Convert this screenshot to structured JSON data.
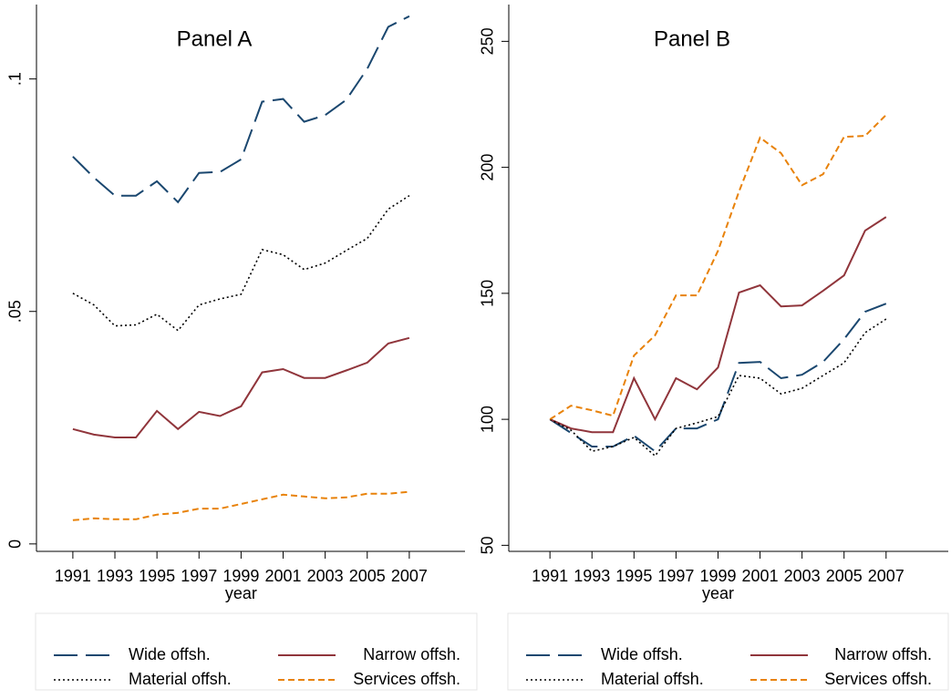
{
  "chart_data": [
    {
      "type": "line",
      "title": "Panel A",
      "x_label": "year",
      "x": [
        1991,
        1992,
        1993,
        1994,
        1995,
        1996,
        1997,
        1998,
        1999,
        2000,
        2001,
        2002,
        2003,
        2004,
        2005,
        2006,
        2007
      ],
      "xlim": [
        1989.27,
        2009.65
      ],
      "xticks": [
        1991,
        1993,
        1995,
        1997,
        1999,
        2001,
        2003,
        2005,
        2007
      ],
      "ylim": [
        -0.0016,
        0.116
      ],
      "yticks": [
        0,
        {
          "value": 0.05,
          "label": ".05"
        },
        {
          "value": 0.1,
          "label": ".1"
        }
      ],
      "legend": "bottom",
      "series": [
        {
          "name": "Wide offsh.",
          "color": "#1a476f",
          "style": "longdash",
          "values": [
            0.0833,
            0.0788,
            0.0749,
            0.0749,
            0.078,
            0.0735,
            0.0798,
            0.08,
            0.0827,
            0.0951,
            0.0957,
            0.0908,
            0.0922,
            0.0955,
            0.1022,
            0.1112,
            0.1135
          ]
        },
        {
          "name": "Narrow offsh.",
          "color": "#90353b",
          "style": "solid",
          "values": [
            0.0247,
            0.0235,
            0.0229,
            0.0229,
            0.0286,
            0.0247,
            0.0284,
            0.0275,
            0.0296,
            0.0369,
            0.0376,
            0.0357,
            0.0357,
            0.0373,
            0.039,
            0.0431,
            0.0443
          ]
        },
        {
          "name": "Material offsh.",
          "color": "#000000",
          "style": "dot",
          "values": [
            0.0539,
            0.0514,
            0.0469,
            0.0471,
            0.0494,
            0.0459,
            0.0514,
            0.0527,
            0.0537,
            0.0633,
            0.0622,
            0.059,
            0.0604,
            0.0631,
            0.0657,
            0.072,
            0.0749
          ]
        },
        {
          "name": "Services offsh.",
          "color": "#e8820a",
          "style": "shortdash",
          "values": [
            0.0051,
            0.0055,
            0.0053,
            0.0053,
            0.0063,
            0.0067,
            0.0076,
            0.0076,
            0.0086,
            0.0096,
            0.0106,
            0.0102,
            0.0098,
            0.01,
            0.0108,
            0.0108,
            0.0112
          ]
        }
      ]
    },
    {
      "type": "line",
      "title": "Panel B",
      "x_label": "year",
      "x": [
        1991,
        1992,
        1993,
        1994,
        1995,
        1996,
        1997,
        1998,
        1999,
        2000,
        2001,
        2002,
        2003,
        2004,
        2005,
        2006,
        2007
      ],
      "xlim": [
        1989.04,
        2009.96
      ],
      "xticks": [
        1991,
        1993,
        1995,
        1997,
        1999,
        2001,
        2003,
        2005,
        2007
      ],
      "ylim": [
        47.6,
        264.6
      ],
      "yticks": [
        50,
        100,
        150,
        200,
        250
      ],
      "legend": "bottom",
      "series": [
        {
          "name": "Wide offsh.",
          "color": "#1a476f",
          "style": "longdash",
          "values": [
            100,
            94.6,
            89.2,
            89.2,
            93.5,
            87.3,
            96.4,
            96.4,
            100,
            122.4,
            122.8,
            116.3,
            117.7,
            122.8,
            131.8,
            142.7,
            145.9
          ]
        },
        {
          "name": "Narrow offsh.",
          "color": "#90353b",
          "style": "solid",
          "values": [
            100,
            96.4,
            94.9,
            94.9,
            116.3,
            100,
            116.3,
            111.9,
            120.6,
            150.3,
            153.2,
            144.8,
            145.2,
            151.0,
            157.1,
            174.9,
            180.3
          ]
        },
        {
          "name": "Material offsh.",
          "color": "#000000",
          "style": "dot",
          "values": [
            100,
            95.7,
            87.3,
            89.2,
            92.8,
            85.5,
            96.4,
            98.6,
            101.1,
            117.4,
            116.3,
            110.1,
            112.3,
            117.4,
            122.4,
            134.4,
            139.8
          ]
        },
        {
          "name": "Services offsh.",
          "color": "#e8820a",
          "style": "shortdash",
          "values": [
            100,
            105.4,
            103.6,
            101.4,
            125.3,
            133.3,
            149.2,
            149.2,
            166.9,
            190.4,
            211.8,
            205.6,
            192.9,
            197.3,
            212.1,
            212.5,
            220.8
          ]
        }
      ]
    }
  ]
}
